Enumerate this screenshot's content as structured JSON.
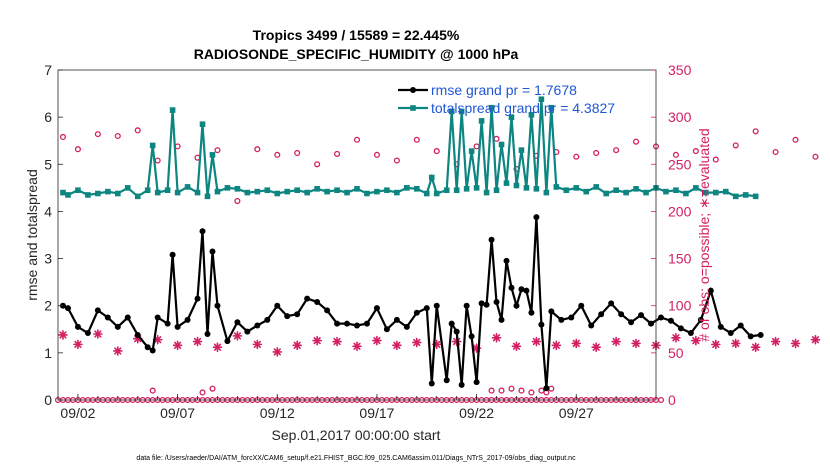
{
  "chart_data": {
    "type": "line",
    "title_line1": "Tropics 3499 / 15589 = 22.445%",
    "title_line2": "RADIOSONDE_SPECIFIC_HUMIDITY @ 1000 hPa",
    "xlabel": "Sep.01,2017 00:00:00 start",
    "ylabel_left": "rmse and totalspread",
    "ylabel_right": "# of obs: o=possible; ∗=evaluated",
    "footer": "data file: /Users/raeder/DAI/ATM_forcXX/CAM6_setup/f.e21.FHIST_BGC.f09_025.CAM6assim.011/Diags_NTrS_2017-09/obs_diag_output.nc",
    "x_tick_labels": [
      "09/02",
      "09/07",
      "09/12",
      "09/17",
      "09/22",
      "09/27"
    ],
    "x_tick_days": [
      2,
      7,
      12,
      17,
      22,
      27
    ],
    "xlim_days": [
      1.0,
      31.0
    ],
    "ylim_left": [
      0,
      7
    ],
    "y_ticks_left": [
      "0",
      "1",
      "2",
      "3",
      "4",
      "5",
      "6",
      "7"
    ],
    "ylim_right": [
      0,
      350
    ],
    "y_ticks_right": [
      "0",
      "50",
      "100",
      "150",
      "200",
      "250",
      "300",
      "350"
    ],
    "legend": [
      {
        "label": "rmse grand pr = 1.7678",
        "color": "#000000"
      },
      {
        "label": "totalspread grand pr = 4.3827",
        "color": "#0d8580"
      }
    ],
    "colors": {
      "rmse": "#000000",
      "spread": "#0d8580",
      "obs": "#d31f63",
      "axis_right": "#d31f63",
      "legend_text": "#1f57d6"
    },
    "series": [
      {
        "name": "rmse",
        "axis": "left",
        "x_start_day": 1.25,
        "x_step_days": 0.25,
        "values": [
          2.0,
          1.95,
          null,
          1.55,
          null,
          1.42,
          null,
          1.9,
          null,
          1.75,
          null,
          1.55,
          null,
          1.75,
          null,
          1.38,
          null,
          1.12,
          1.05,
          1.75,
          null,
          1.62,
          3.08,
          1.55,
          null,
          1.7,
          null,
          2.15,
          3.58,
          1.4,
          3.15,
          2.0,
          null,
          1.25,
          null,
          1.65,
          null,
          1.45,
          null,
          1.58,
          null,
          1.7,
          null,
          2.0,
          null,
          1.78,
          null,
          1.82,
          null,
          2.15,
          null,
          2.08,
          null,
          1.9,
          null,
          1.62,
          null,
          1.62,
          null,
          1.58,
          null,
          1.62,
          null,
          1.95,
          null,
          1.5,
          null,
          1.7,
          null,
          1.55,
          null,
          1.85,
          null,
          1.95,
          0.35,
          2.0,
          null,
          0.42,
          1.62,
          1.45,
          0.32,
          2.0,
          1.35,
          0.38,
          2.05,
          2.02,
          3.4,
          2.08,
          1.7,
          2.95,
          2.38,
          2.0,
          2.35,
          2.32,
          1.85,
          3.88,
          1.6,
          0.25,
          1.88,
          null,
          1.7,
          null,
          1.75,
          null,
          2.0,
          null,
          1.58,
          null,
          1.82,
          null,
          2.05,
          null,
          1.82,
          null,
          1.65,
          null,
          1.8,
          null,
          1.62,
          null,
          1.75,
          null,
          1.68,
          null,
          1.52,
          null,
          1.42,
          null,
          1.7,
          null,
          2.32,
          null,
          1.55,
          null,
          1.42,
          null,
          1.58,
          null,
          1.35,
          null,
          1.38
        ]
      },
      {
        "name": "totalspread",
        "axis": "left",
        "x_start_day": 1.25,
        "x_step_days": 0.25,
        "values": [
          4.4,
          4.35,
          null,
          4.45,
          null,
          4.35,
          null,
          4.38,
          null,
          4.42,
          null,
          4.38,
          null,
          4.5,
          null,
          4.32,
          null,
          4.45,
          5.4,
          4.4,
          null,
          4.45,
          6.15,
          4.4,
          null,
          4.52,
          null,
          4.4,
          5.85,
          4.32,
          5.2,
          4.42,
          null,
          4.5,
          null,
          4.48,
          null,
          4.4,
          null,
          4.42,
          null,
          4.45,
          null,
          4.38,
          null,
          4.42,
          null,
          4.45,
          null,
          4.4,
          null,
          4.48,
          null,
          4.42,
          null,
          4.45,
          null,
          4.4,
          null,
          4.48,
          null,
          4.38,
          null,
          4.42,
          null,
          4.45,
          null,
          4.4,
          null,
          4.5,
          null,
          4.48,
          null,
          4.38,
          4.72,
          4.38,
          null,
          4.45,
          6.12,
          4.45,
          6.12,
          4.48,
          5.28,
          4.5,
          5.92,
          4.4,
          6.2,
          4.45,
          5.42,
          4.6,
          6.0,
          4.55,
          5.3,
          4.5,
          6.05,
          4.48,
          6.38,
          4.4,
          6.2,
          4.52,
          null,
          4.45,
          null,
          4.5,
          null,
          4.42,
          null,
          4.52,
          null,
          4.38,
          null,
          4.45,
          null,
          4.4,
          null,
          4.48,
          null,
          4.4,
          null,
          4.5,
          null,
          4.42,
          null,
          4.45,
          null,
          4.38,
          null,
          4.5,
          null,
          4.4,
          null,
          4.4,
          null,
          4.42,
          null,
          4.32,
          null,
          4.35,
          null,
          4.32
        ]
      },
      {
        "name": "obs possible",
        "axis": "right",
        "x_start_day": 1.25,
        "x_step_days": 0.25,
        "values": [
          279,
          null,
          null,
          266,
          null,
          null,
          null,
          282,
          null,
          null,
          null,
          280,
          null,
          null,
          null,
          286,
          null,
          null,
          null,
          254,
          null,
          null,
          null,
          269,
          null,
          null,
          null,
          257,
          null,
          null,
          null,
          265,
          null,
          null,
          null,
          211,
          null,
          null,
          null,
          266,
          null,
          null,
          null,
          260,
          null,
          null,
          null,
          262,
          null,
          null,
          null,
          250,
          null,
          null,
          null,
          261,
          null,
          null,
          null,
          276,
          null,
          null,
          null,
          260,
          null,
          null,
          null,
          254,
          null,
          null,
          null,
          276,
          null,
          null,
          null,
          264,
          null,
          null,
          null,
          250,
          null,
          null,
          null,
          269,
          null,
          null,
          null,
          277,
          null,
          null,
          null,
          245,
          null,
          null,
          null,
          259,
          null,
          null,
          null,
          263,
          null,
          null,
          null,
          258,
          null,
          null,
          null,
          262,
          null,
          null,
          null,
          265,
          null,
          null,
          null,
          274,
          null,
          null,
          null,
          269,
          null,
          null,
          null,
          260,
          null,
          null,
          null,
          264,
          null,
          null,
          null,
          255,
          null,
          null,
          null,
          270,
          null,
          null,
          null,
          285,
          null,
          null,
          null,
          263,
          null,
          null,
          null,
          276,
          null,
          null,
          null,
          258
        ]
      },
      {
        "name": "obs evaluated",
        "axis": "right",
        "x_start_day": 1.25,
        "x_step_days": 0.25,
        "values": [
          69,
          null,
          null,
          59,
          null,
          null,
          null,
          70,
          null,
          null,
          null,
          52,
          null,
          null,
          null,
          65,
          null,
          null,
          null,
          64,
          null,
          null,
          null,
          58,
          null,
          null,
          null,
          62,
          null,
          null,
          null,
          56,
          null,
          null,
          null,
          68,
          null,
          null,
          null,
          59,
          null,
          null,
          null,
          51,
          null,
          null,
          null,
          58,
          null,
          null,
          null,
          63,
          null,
          null,
          null,
          62,
          null,
          null,
          null,
          57,
          null,
          null,
          null,
          63,
          null,
          null,
          null,
          58,
          null,
          null,
          null,
          61,
          null,
          null,
          null,
          59,
          null,
          null,
          null,
          62,
          null,
          null,
          null,
          55,
          null,
          null,
          null,
          66,
          null,
          null,
          null,
          57,
          null,
          null,
          null,
          62,
          null,
          null,
          null,
          58,
          null,
          null,
          null,
          60,
          null,
          null,
          null,
          56,
          null,
          null,
          null,
          62,
          null,
          null,
          null,
          60,
          null,
          null,
          null,
          58,
          null,
          null,
          null,
          66,
          null,
          null,
          null,
          63,
          null,
          null,
          null,
          59,
          null,
          null,
          null,
          60,
          null,
          null,
          null,
          56,
          null,
          null,
          null,
          62,
          null,
          null,
          null,
          60,
          null,
          null,
          null,
          64
        ]
      },
      {
        "name": "obs zero-level possible",
        "axis": "right",
        "x_start_day": 1.0,
        "x_step_days": 0.25,
        "values": [
          0,
          0,
          0,
          0,
          0,
          0,
          0,
          0,
          0,
          0,
          0,
          0,
          0,
          0,
          0,
          0,
          0,
          0,
          0,
          0,
          0,
          0,
          0,
          0,
          0,
          0,
          0,
          0,
          0,
          0,
          0,
          0,
          0,
          0,
          0,
          0,
          0,
          0,
          0,
          0,
          0,
          0,
          0,
          0,
          0,
          0,
          0,
          0,
          0,
          0,
          0,
          0,
          0,
          0,
          0,
          0,
          0,
          0,
          0,
          0,
          0,
          0,
          0,
          0,
          0,
          0,
          0,
          0,
          0,
          0,
          0,
          0,
          0,
          0,
          0,
          0,
          0,
          0,
          0,
          0,
          0,
          0,
          0,
          0,
          0,
          0,
          0,
          0,
          0,
          0,
          0,
          0,
          0,
          0,
          0,
          0,
          0,
          0,
          0,
          0,
          0,
          0,
          0,
          0,
          0,
          0,
          0,
          0,
          0,
          0,
          0,
          0,
          0,
          0,
          0,
          0,
          0,
          0,
          0,
          0,
          0,
          0
        ]
      },
      {
        "name": "obs secondary possible",
        "axis": "right",
        "x_start_day": 5.75,
        "x_step_days": 0.25,
        "values": [
          10,
          null,
          null,
          null,
          null,
          null,
          null,
          null,
          null,
          null,
          8,
          null,
          12,
          null,
          null,
          null,
          null,
          null,
          null,
          null,
          null,
          null,
          null,
          null,
          null,
          null,
          null,
          null,
          null,
          null,
          null,
          null,
          null,
          null,
          null,
          null,
          null,
          null,
          null,
          null,
          null,
          null,
          null,
          null,
          null,
          null,
          null,
          null,
          null,
          null,
          null,
          null,
          null,
          null,
          null,
          null,
          null,
          null,
          null,
          null,
          null,
          null,
          null,
          null,
          null,
          null,
          null,
          null,
          10,
          null,
          10,
          null,
          12,
          null,
          10,
          null,
          8,
          null,
          10,
          8,
          12
        ]
      }
    ]
  }
}
